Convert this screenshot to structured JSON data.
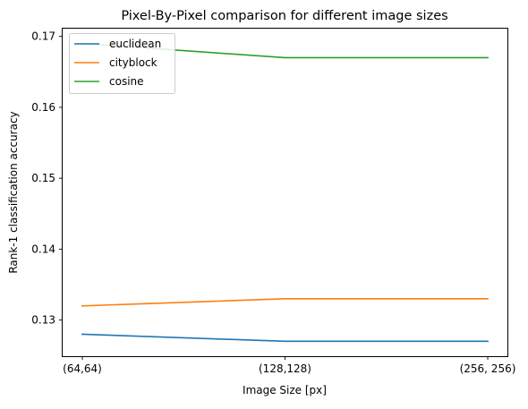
{
  "chart_data": {
    "type": "line",
    "title": "Pixel-By-Pixel comparison for different image sizes",
    "xlabel": "Image Size [px]",
    "ylabel": "Rank-1 classification accuracy",
    "categories": [
      "(64,64)",
      "(128,128)",
      "(256, 256)"
    ],
    "series": [
      {
        "name": "euclidean",
        "color": "#1f77b4",
        "values": [
          0.128,
          0.127,
          0.127
        ]
      },
      {
        "name": "cityblock",
        "color": "#ff7f0e",
        "values": [
          0.132,
          0.133,
          0.133
        ]
      },
      {
        "name": "cosine",
        "color": "#2ca02c",
        "values": [
          0.169,
          0.167,
          0.167
        ]
      }
    ],
    "ylim": [
      0.1249,
      0.1711
    ],
    "yticks": [
      0.13,
      0.14,
      0.15,
      0.16,
      0.17
    ],
    "ytick_labels": [
      "0.13",
      "0.14",
      "0.15",
      "0.16",
      "0.17"
    ],
    "grid": false,
    "legend_position": "upper-left"
  }
}
